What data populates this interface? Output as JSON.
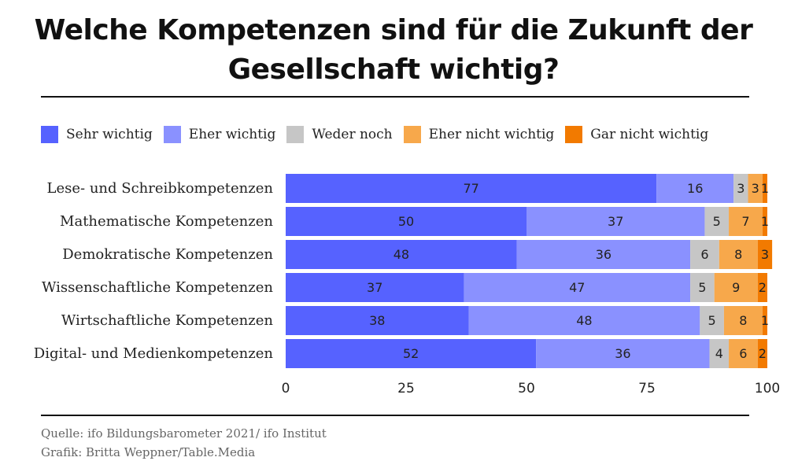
{
  "header": {
    "title_line1": "Welche Kompetenzen sind für die Zukunft der",
    "title_line2": "Gesellschaft wichtig?"
  },
  "footer": {
    "source": "Quelle: ifo Bildungsbarometer 2021/ ifo Institut",
    "credit": "Grafik: Britta Weppner/Table.Media"
  },
  "chart_data": {
    "type": "bar",
    "orientation": "horizontal",
    "stacked": true,
    "categories": [
      "Lese- und Schreibkompetenzen",
      "Mathematische Kompetenzen",
      "Demokratische Kompetenzen",
      "Wissenschaftliche Kompetenzen",
      "Wirtschaftliche Kompetenzen",
      "Digital- und Medienkompetenzen"
    ],
    "series": [
      {
        "name": "Sehr wichtig",
        "color": "#5662ff",
        "values": [
          77,
          50,
          48,
          37,
          38,
          52
        ]
      },
      {
        "name": "Eher wichtig",
        "color": "#8a91ff",
        "values": [
          16,
          37,
          36,
          47,
          48,
          36
        ]
      },
      {
        "name": "Weder noch",
        "color": "#c6c6c6",
        "values": [
          3,
          5,
          6,
          5,
          5,
          4
        ]
      },
      {
        "name": "Eher nicht wichtig",
        "color": "#f7a84b",
        "values": [
          3,
          7,
          8,
          9,
          8,
          6
        ]
      },
      {
        "name": "Gar nicht wichtig",
        "color": "#f27a00",
        "values": [
          1,
          1,
          3,
          2,
          1,
          2
        ]
      }
    ],
    "xlim": [
      0,
      100
    ],
    "xticks": [
      0,
      25,
      50,
      75,
      100
    ],
    "legend_position": "top",
    "grid": false
  }
}
